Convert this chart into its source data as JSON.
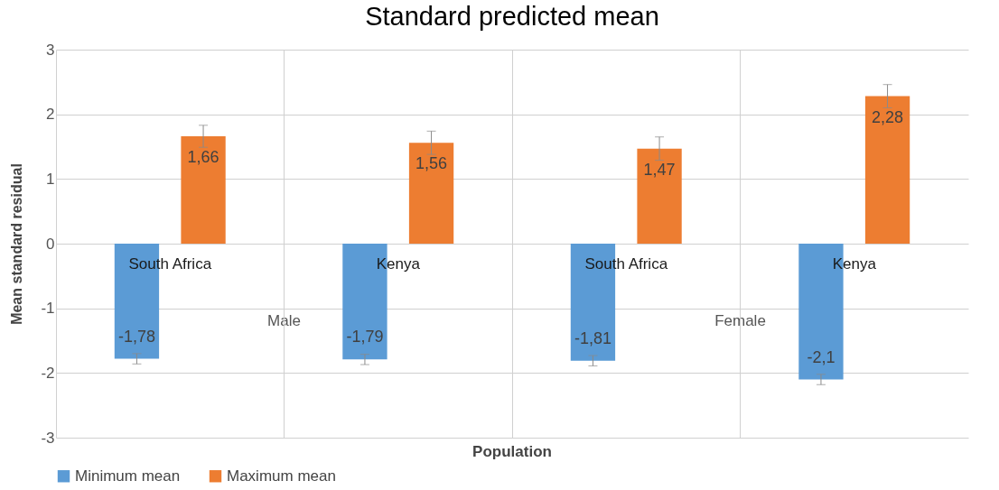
{
  "chart_data": {
    "type": "bar",
    "title": "Standard predicted mean",
    "xlabel": "Population",
    "ylabel": "Mean standard residual",
    "categories": [
      "South Africa",
      "Kenya",
      "South Africa",
      "Kenya"
    ],
    "series": [
      {
        "name": "Minimum mean",
        "color": "#5b9bd5",
        "values": [
          -1.78,
          -1.79,
          -1.81,
          -2.1
        ],
        "errors": [
          0.08,
          0.08,
          0.08,
          0.08
        ],
        "value_labels": [
          "-1,78",
          "-1,79",
          "-1,81",
          "-2,1"
        ]
      },
      {
        "name": "Maximum mean",
        "color": "#ed7d31",
        "values": [
          1.66,
          1.56,
          1.47,
          2.28
        ],
        "errors": [
          0.17,
          0.18,
          0.18,
          0.18
        ],
        "value_labels": [
          "1,66",
          "1,56",
          "1,47",
          "2,28"
        ]
      }
    ],
    "annotations": [
      "Male",
      "Female"
    ],
    "ylim": [
      -3,
      3
    ],
    "yticks": [
      -3,
      -2,
      -1,
      0,
      1,
      2,
      3
    ],
    "grid": true,
    "legend": "bottom"
  }
}
